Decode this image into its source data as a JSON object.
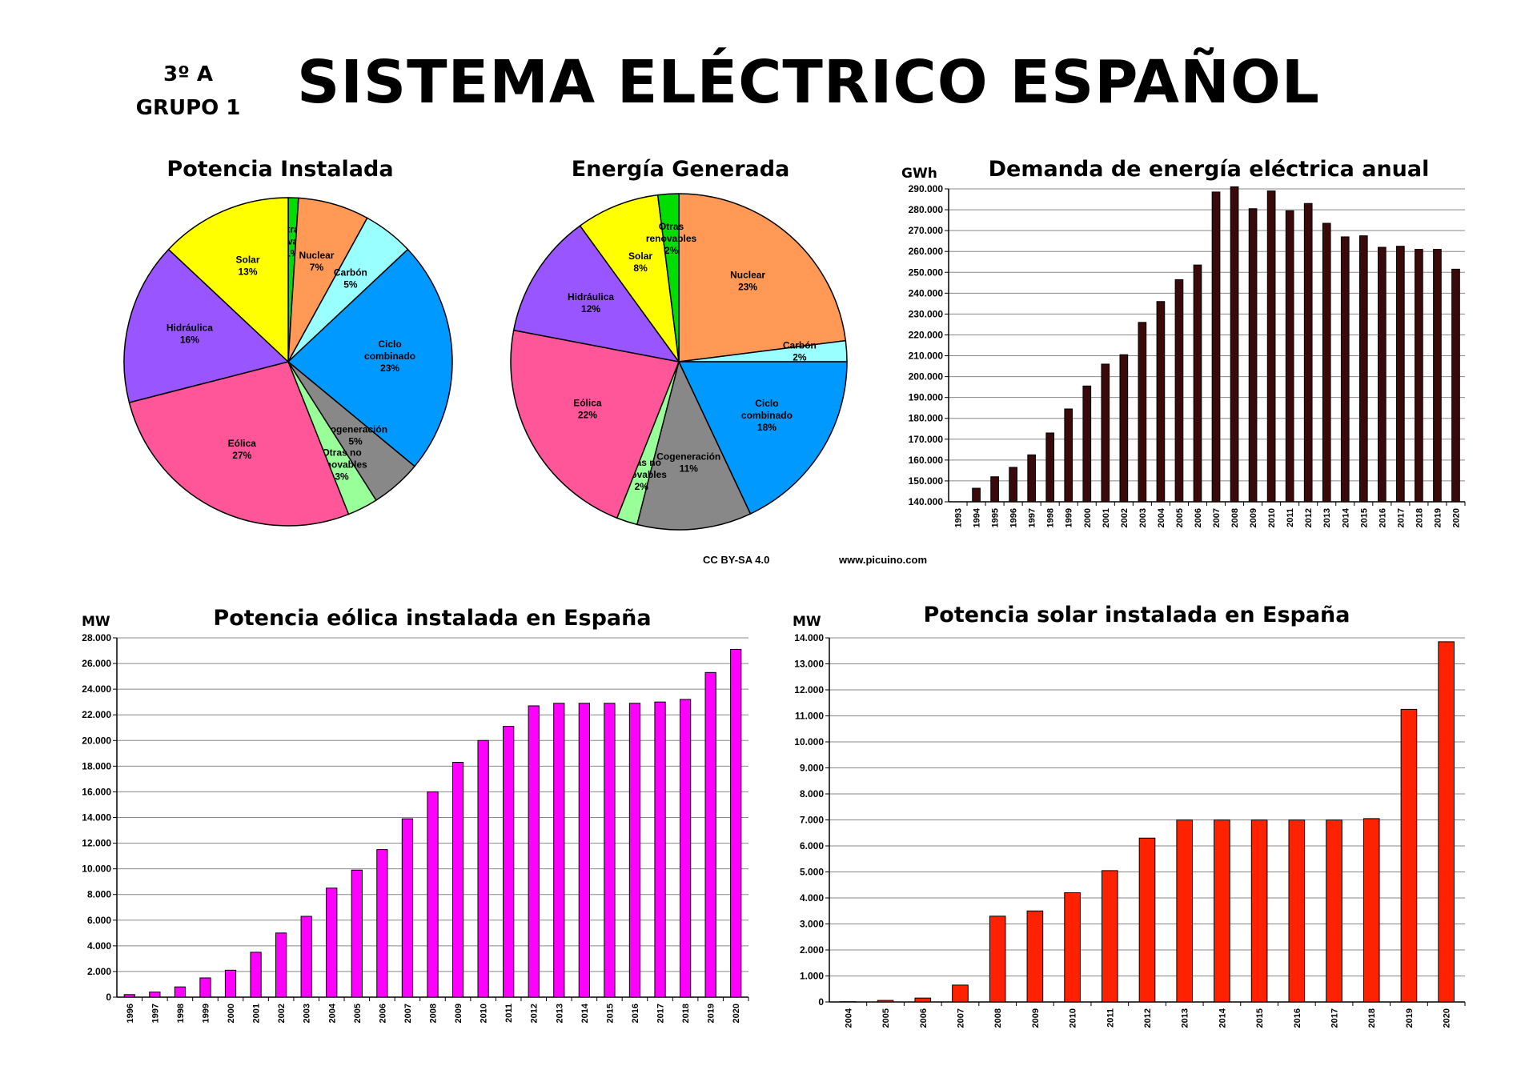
{
  "header": {
    "class_label": "3º A",
    "group_label": "GRUPO 1",
    "title": "SISTEMA ELÉCTRICO ESPAÑOL"
  },
  "footer": {
    "license": "CC BY-SA 4.0",
    "website": "www.picuino.com"
  },
  "colors": {
    "demand_bars": "#3a0a0a",
    "wind_bars": "#ff00ff",
    "solar_bars": "#ff2200"
  },
  "chart_data": [
    {
      "id": "potencia_instalada",
      "type": "pie",
      "title": "Potencia Instalada",
      "slices": [
        {
          "label": "Otras renovables",
          "value": 1,
          "pct_label": "1%",
          "color": "#00dd00"
        },
        {
          "label": "Nuclear",
          "value": 7,
          "pct_label": "7%",
          "color": "#ff9955"
        },
        {
          "label": "Carbón",
          "value": 5,
          "pct_label": "5%",
          "color": "#99ffff"
        },
        {
          "label": "Ciclo combinado",
          "value": 23,
          "pct_label": "23%",
          "color": "#0099ff"
        },
        {
          "label": "Cogeneración",
          "value": 5,
          "pct_label": "5%",
          "color": "#888888"
        },
        {
          "label": "Otras no renovables",
          "value": 3,
          "pct_label": "3%",
          "color": "#99ff99"
        },
        {
          "label": "Eólica",
          "value": 27,
          "pct_label": "27%",
          "color": "#ff5599"
        },
        {
          "label": "Hidráulica",
          "value": 16,
          "pct_label": "16%",
          "color": "#9955ff"
        },
        {
          "label": "Solar",
          "value": 13,
          "pct_label": "13%",
          "color": "#ffff00"
        }
      ]
    },
    {
      "id": "energia_generada",
      "type": "pie",
      "title": "Energía Generada",
      "slices": [
        {
          "label": "Nuclear",
          "value": 23,
          "pct_label": "23%",
          "color": "#ff9955"
        },
        {
          "label": "Carbón",
          "value": 2,
          "pct_label": "2%",
          "color": "#99ffff"
        },
        {
          "label": "Ciclo combinado",
          "value": 18,
          "pct_label": "18%",
          "color": "#0099ff"
        },
        {
          "label": "Cogeneración",
          "value": 11,
          "pct_label": "11%",
          "color": "#888888"
        },
        {
          "label": "Otras no renovables",
          "value": 2,
          "pct_label": "2%",
          "color": "#99ff99"
        },
        {
          "label": "Eólica",
          "value": 22,
          "pct_label": "22%",
          "color": "#ff5599"
        },
        {
          "label": "Hidráulica",
          "value": 12,
          "pct_label": "12%",
          "color": "#9955ff"
        },
        {
          "label": "Solar",
          "value": 8,
          "pct_label": "8%",
          "color": "#ffff00"
        },
        {
          "label": "Otras renovables",
          "value": 2,
          "pct_label": "2%",
          "color": "#00dd00"
        }
      ]
    },
    {
      "id": "demanda",
      "type": "bar",
      "title": "Demanda de energía eléctrica anual",
      "ylabel": "GWh",
      "ylim": [
        140000,
        290000
      ],
      "ytick_step": 10000,
      "grid": true,
      "categories": [
        "1993",
        "1994",
        "1995",
        "1996",
        "1997",
        "1998",
        "1999",
        "2000",
        "2001",
        "2002",
        "2003",
        "2004",
        "2005",
        "2006",
        "2007",
        "2008",
        "2009",
        "2010",
        "2011",
        "2012",
        "2013",
        "2014",
        "2015",
        "2016",
        "2017",
        "2018",
        "2019",
        "2020"
      ],
      "values": [
        140000,
        146500,
        152000,
        156500,
        162500,
        173000,
        184500,
        195500,
        206000,
        210500,
        226000,
        236000,
        246500,
        253500,
        288500,
        291000,
        280500,
        289000,
        279500,
        283000,
        273500,
        267000,
        267500,
        262000,
        262500,
        261000,
        261000,
        251500
      ]
    },
    {
      "id": "eolica",
      "type": "bar",
      "title": "Potencia eólica instalada en España",
      "ylabel": "MW",
      "ylim": [
        0,
        28000
      ],
      "ytick_step": 2000,
      "grid": true,
      "categories": [
        "1996",
        "1997",
        "1998",
        "1999",
        "2000",
        "2001",
        "2002",
        "2003",
        "2004",
        "2005",
        "2006",
        "2007",
        "2008",
        "2009",
        "2010",
        "2011",
        "2012",
        "2013",
        "2014",
        "2015",
        "2016",
        "2017",
        "2018",
        "2019",
        "2020"
      ],
      "values": [
        200,
        400,
        800,
        1500,
        2100,
        3500,
        5000,
        6300,
        8500,
        9900,
        11500,
        13900,
        16000,
        18300,
        20000,
        21100,
        22700,
        22900,
        22900,
        22900,
        22900,
        23000,
        23200,
        25300,
        27100
      ]
    },
    {
      "id": "solar",
      "type": "bar",
      "title": "Potencia solar instalada en España",
      "ylabel": "MW",
      "ylim": [
        0,
        14000
      ],
      "ytick_step": 1000,
      "grid": true,
      "categories": [
        "2004",
        "2005",
        "2006",
        "2007",
        "2008",
        "2009",
        "2010",
        "2011",
        "2012",
        "2013",
        "2014",
        "2015",
        "2016",
        "2017",
        "2018",
        "2019",
        "2020"
      ],
      "values": [
        10,
        60,
        150,
        650,
        3300,
        3500,
        4200,
        5050,
        6300,
        7000,
        7000,
        7000,
        7000,
        7000,
        7050,
        11250,
        13850
      ]
    }
  ]
}
